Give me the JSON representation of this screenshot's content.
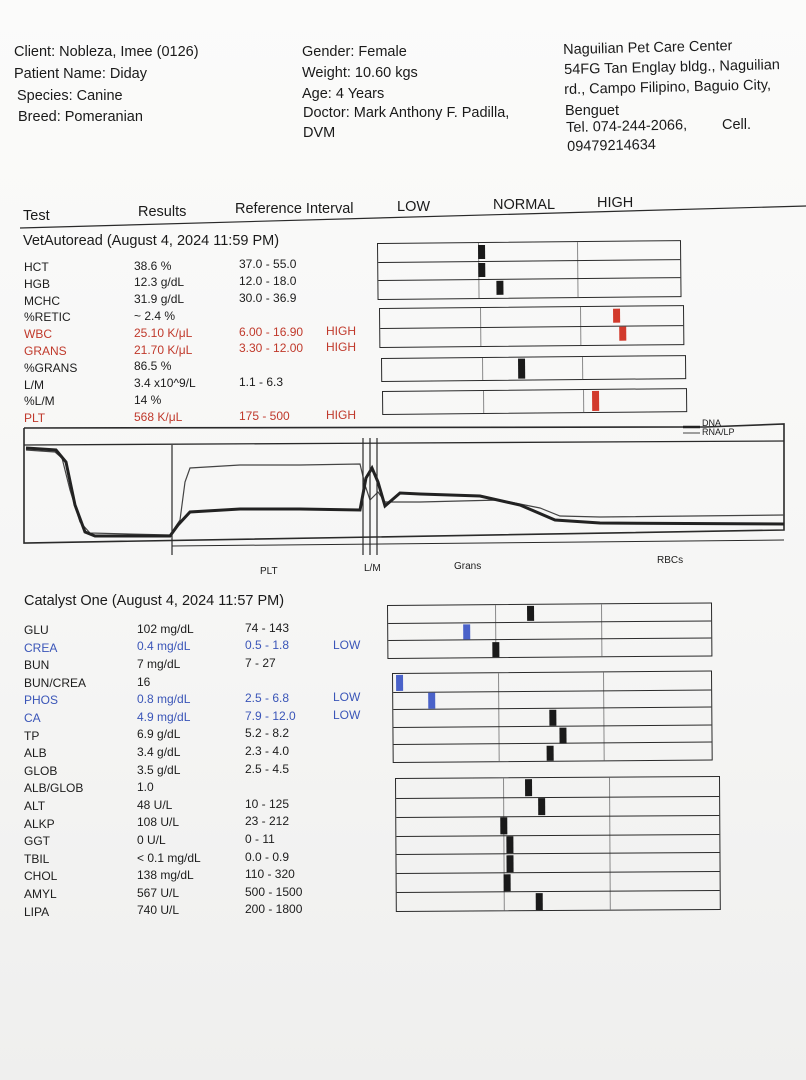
{
  "client": {
    "client_line": "Client: Nobleza, Imee (0126)",
    "patient_line": "Patient Name: Diday",
    "species_line": "Species: Canine",
    "breed_line": "Breed: Pomeranian"
  },
  "patient": {
    "gender_line": "Gender: Female",
    "weight_line": "Weight: 10.60 kgs",
    "age_line": "Age: 4 Years",
    "doctor_line1": "Doctor: Mark Anthony F. Padilla,",
    "doctor_line2": "DVM"
  },
  "clinic": {
    "name": "Naguilian Pet Care Center",
    "address1": "54FG Tan Englay bldg., Naguilian",
    "address2": "rd., Campo Filipino, Baguio City,",
    "address3": "Benguet",
    "phone": "Tel. 074-244-2066,",
    "cell_label": "Cell.",
    "cell": "09479214634"
  },
  "columns": {
    "test": "Test",
    "results": "Results",
    "reference": "Reference Interval",
    "low": "LOW",
    "normal": "NORMAL",
    "high": "HIGH"
  },
  "vetautoread": {
    "title": "VetAutoread (August 4, 2024 11:59 PM)",
    "rows": [
      {
        "test": "HCT",
        "result": "38.6 %",
        "ref": "37.0 - 55.0",
        "flag": "",
        "color": "#1c1c1c"
      },
      {
        "test": "HGB",
        "result": "12.3 g/dL",
        "ref": "12.0 - 18.0",
        "flag": "",
        "color": "#1c1c1c"
      },
      {
        "test": "MCHC",
        "result": "31.9 g/dL",
        "ref": "30.0 - 36.9",
        "flag": "",
        "color": "#1c1c1c"
      },
      {
        "test": "%RETIC",
        "result": "~ 2.4 %",
        "ref": "",
        "flag": "",
        "color": "#1c1c1c"
      },
      {
        "test": "WBC",
        "result": "25.10 K/μL",
        "ref": "6.00 - 16.90",
        "flag": "HIGH",
        "color": "#c0392b"
      },
      {
        "test": "GRANS",
        "result": "21.70 K/μL",
        "ref": "3.30 - 12.00",
        "flag": "HIGH",
        "color": "#c0392b"
      },
      {
        "test": "%GRANS",
        "result": "86.5 %",
        "ref": "",
        "flag": "",
        "color": "#1c1c1c"
      },
      {
        "test": "L/M",
        "result": "3.4 x10^9/L",
        "ref": "1.1 - 6.3",
        "flag": "",
        "color": "#1c1c1c"
      },
      {
        "test": "%L/M",
        "result": "14 %",
        "ref": "",
        "flag": "",
        "color": "#1c1c1c"
      },
      {
        "test": "PLT",
        "result": "568 K/μL",
        "ref": "175 - 500",
        "flag": "HIGH",
        "color": "#c0392b"
      }
    ]
  },
  "histogram": {
    "legend": [
      "DNA",
      "RNA/LP"
    ],
    "labels": [
      "PLT",
      "L/M",
      "Grans",
      "RBCs"
    ]
  },
  "catalyst": {
    "title": "Catalyst One (August 4, 2024 11:57 PM)",
    "rows": [
      {
        "test": "GLU",
        "result": "102 mg/dL",
        "ref": "74 - 143",
        "flag": "",
        "color": "#1c1c1c"
      },
      {
        "test": "CREA",
        "result": "0.4 mg/dL",
        "ref": "0.5 - 1.8",
        "flag": "LOW",
        "color": "#3a55b8"
      },
      {
        "test": "BUN",
        "result": "7 mg/dL",
        "ref": "7 - 27",
        "flag": "",
        "color": "#1c1c1c"
      },
      {
        "test": "BUN/CREA",
        "result": "16",
        "ref": "",
        "flag": "",
        "color": "#1c1c1c"
      },
      {
        "test": "PHOS",
        "result": "0.8 mg/dL",
        "ref": "2.5 - 6.8",
        "flag": "LOW",
        "color": "#3a55b8"
      },
      {
        "test": "CA",
        "result": "4.9 mg/dL",
        "ref": "7.9 - 12.0",
        "flag": "LOW",
        "color": "#3a55b8"
      },
      {
        "test": "TP",
        "result": "6.9 g/dL",
        "ref": "5.2 - 8.2",
        "flag": "",
        "color": "#1c1c1c"
      },
      {
        "test": "ALB",
        "result": "3.4 g/dL",
        "ref": "2.3 - 4.0",
        "flag": "",
        "color": "#1c1c1c"
      },
      {
        "test": "GLOB",
        "result": "3.5 g/dL",
        "ref": "2.5 - 4.5",
        "flag": "",
        "color": "#1c1c1c"
      },
      {
        "test": "ALB/GLOB",
        "result": "1.0",
        "ref": "",
        "flag": "",
        "color": "#1c1c1c"
      },
      {
        "test": "ALT",
        "result": "48 U/L",
        "ref": "10 - 125",
        "flag": "",
        "color": "#1c1c1c"
      },
      {
        "test": "ALKP",
        "result": "108 U/L",
        "ref": "23 - 212",
        "flag": "",
        "color": "#1c1c1c"
      },
      {
        "test": "GGT",
        "result": "0 U/L",
        "ref": "0 - 11",
        "flag": "",
        "color": "#1c1c1c"
      },
      {
        "test": "TBIL",
        "result": "< 0.1 mg/dL",
        "ref": "0.0 - 0.9",
        "flag": "",
        "color": "#1c1c1c"
      },
      {
        "test": "CHOL",
        "result": "138 mg/dL",
        "ref": "110 - 320",
        "flag": "",
        "color": "#1c1c1c"
      },
      {
        "test": "AMYL",
        "result": "567 U/L",
        "ref": "500 - 1500",
        "flag": "",
        "color": "#1c1c1c"
      },
      {
        "test": "LIPA",
        "result": "740 U/L",
        "ref": "200 - 1800",
        "flag": "",
        "color": "#1c1c1c"
      }
    ]
  },
  "markers": {
    "colors": {
      "normal": "#1a1a1a",
      "high": "#d23a2c",
      "low": "#4a62c9"
    },
    "vetautoread": [
      {
        "test": "HCT",
        "position": 0.34,
        "status": "normal"
      },
      {
        "test": "HGB",
        "position": 0.34,
        "status": "normal"
      },
      {
        "test": "MCHC",
        "position": 0.4,
        "status": "normal"
      },
      {
        "test": "WBC",
        "position": 0.78,
        "status": "high"
      },
      {
        "test": "GRANS",
        "position": 0.8,
        "status": "high"
      },
      {
        "test": "L/M",
        "position": 0.46,
        "status": "normal"
      },
      {
        "test": "PLT",
        "position": 0.7,
        "status": "high"
      }
    ],
    "catalyst": [
      {
        "test": "GLU",
        "position": 0.44,
        "status": "normal"
      },
      {
        "test": "CREA",
        "position": 0.24,
        "status": "low"
      },
      {
        "test": "BUN",
        "position": 0.33,
        "status": "normal"
      },
      {
        "test": "PHOS",
        "position": 0.02,
        "status": "low"
      },
      {
        "test": "CA",
        "position": 0.12,
        "status": "low"
      },
      {
        "test": "TP",
        "position": 0.5,
        "status": "normal"
      },
      {
        "test": "ALB",
        "position": 0.53,
        "status": "normal"
      },
      {
        "test": "GLOB",
        "position": 0.49,
        "status": "normal"
      },
      {
        "test": "ALT",
        "position": 0.41,
        "status": "normal"
      },
      {
        "test": "ALKP",
        "position": 0.45,
        "status": "normal"
      },
      {
        "test": "GGT",
        "position": 0.33,
        "status": "normal"
      },
      {
        "test": "TBIL",
        "position": 0.35,
        "status": "normal"
      },
      {
        "test": "CHOL",
        "position": 0.35,
        "status": "normal"
      },
      {
        "test": "AMYL",
        "position": 0.34,
        "status": "normal"
      },
      {
        "test": "LIPA",
        "position": 0.44,
        "status": "normal"
      }
    ]
  }
}
